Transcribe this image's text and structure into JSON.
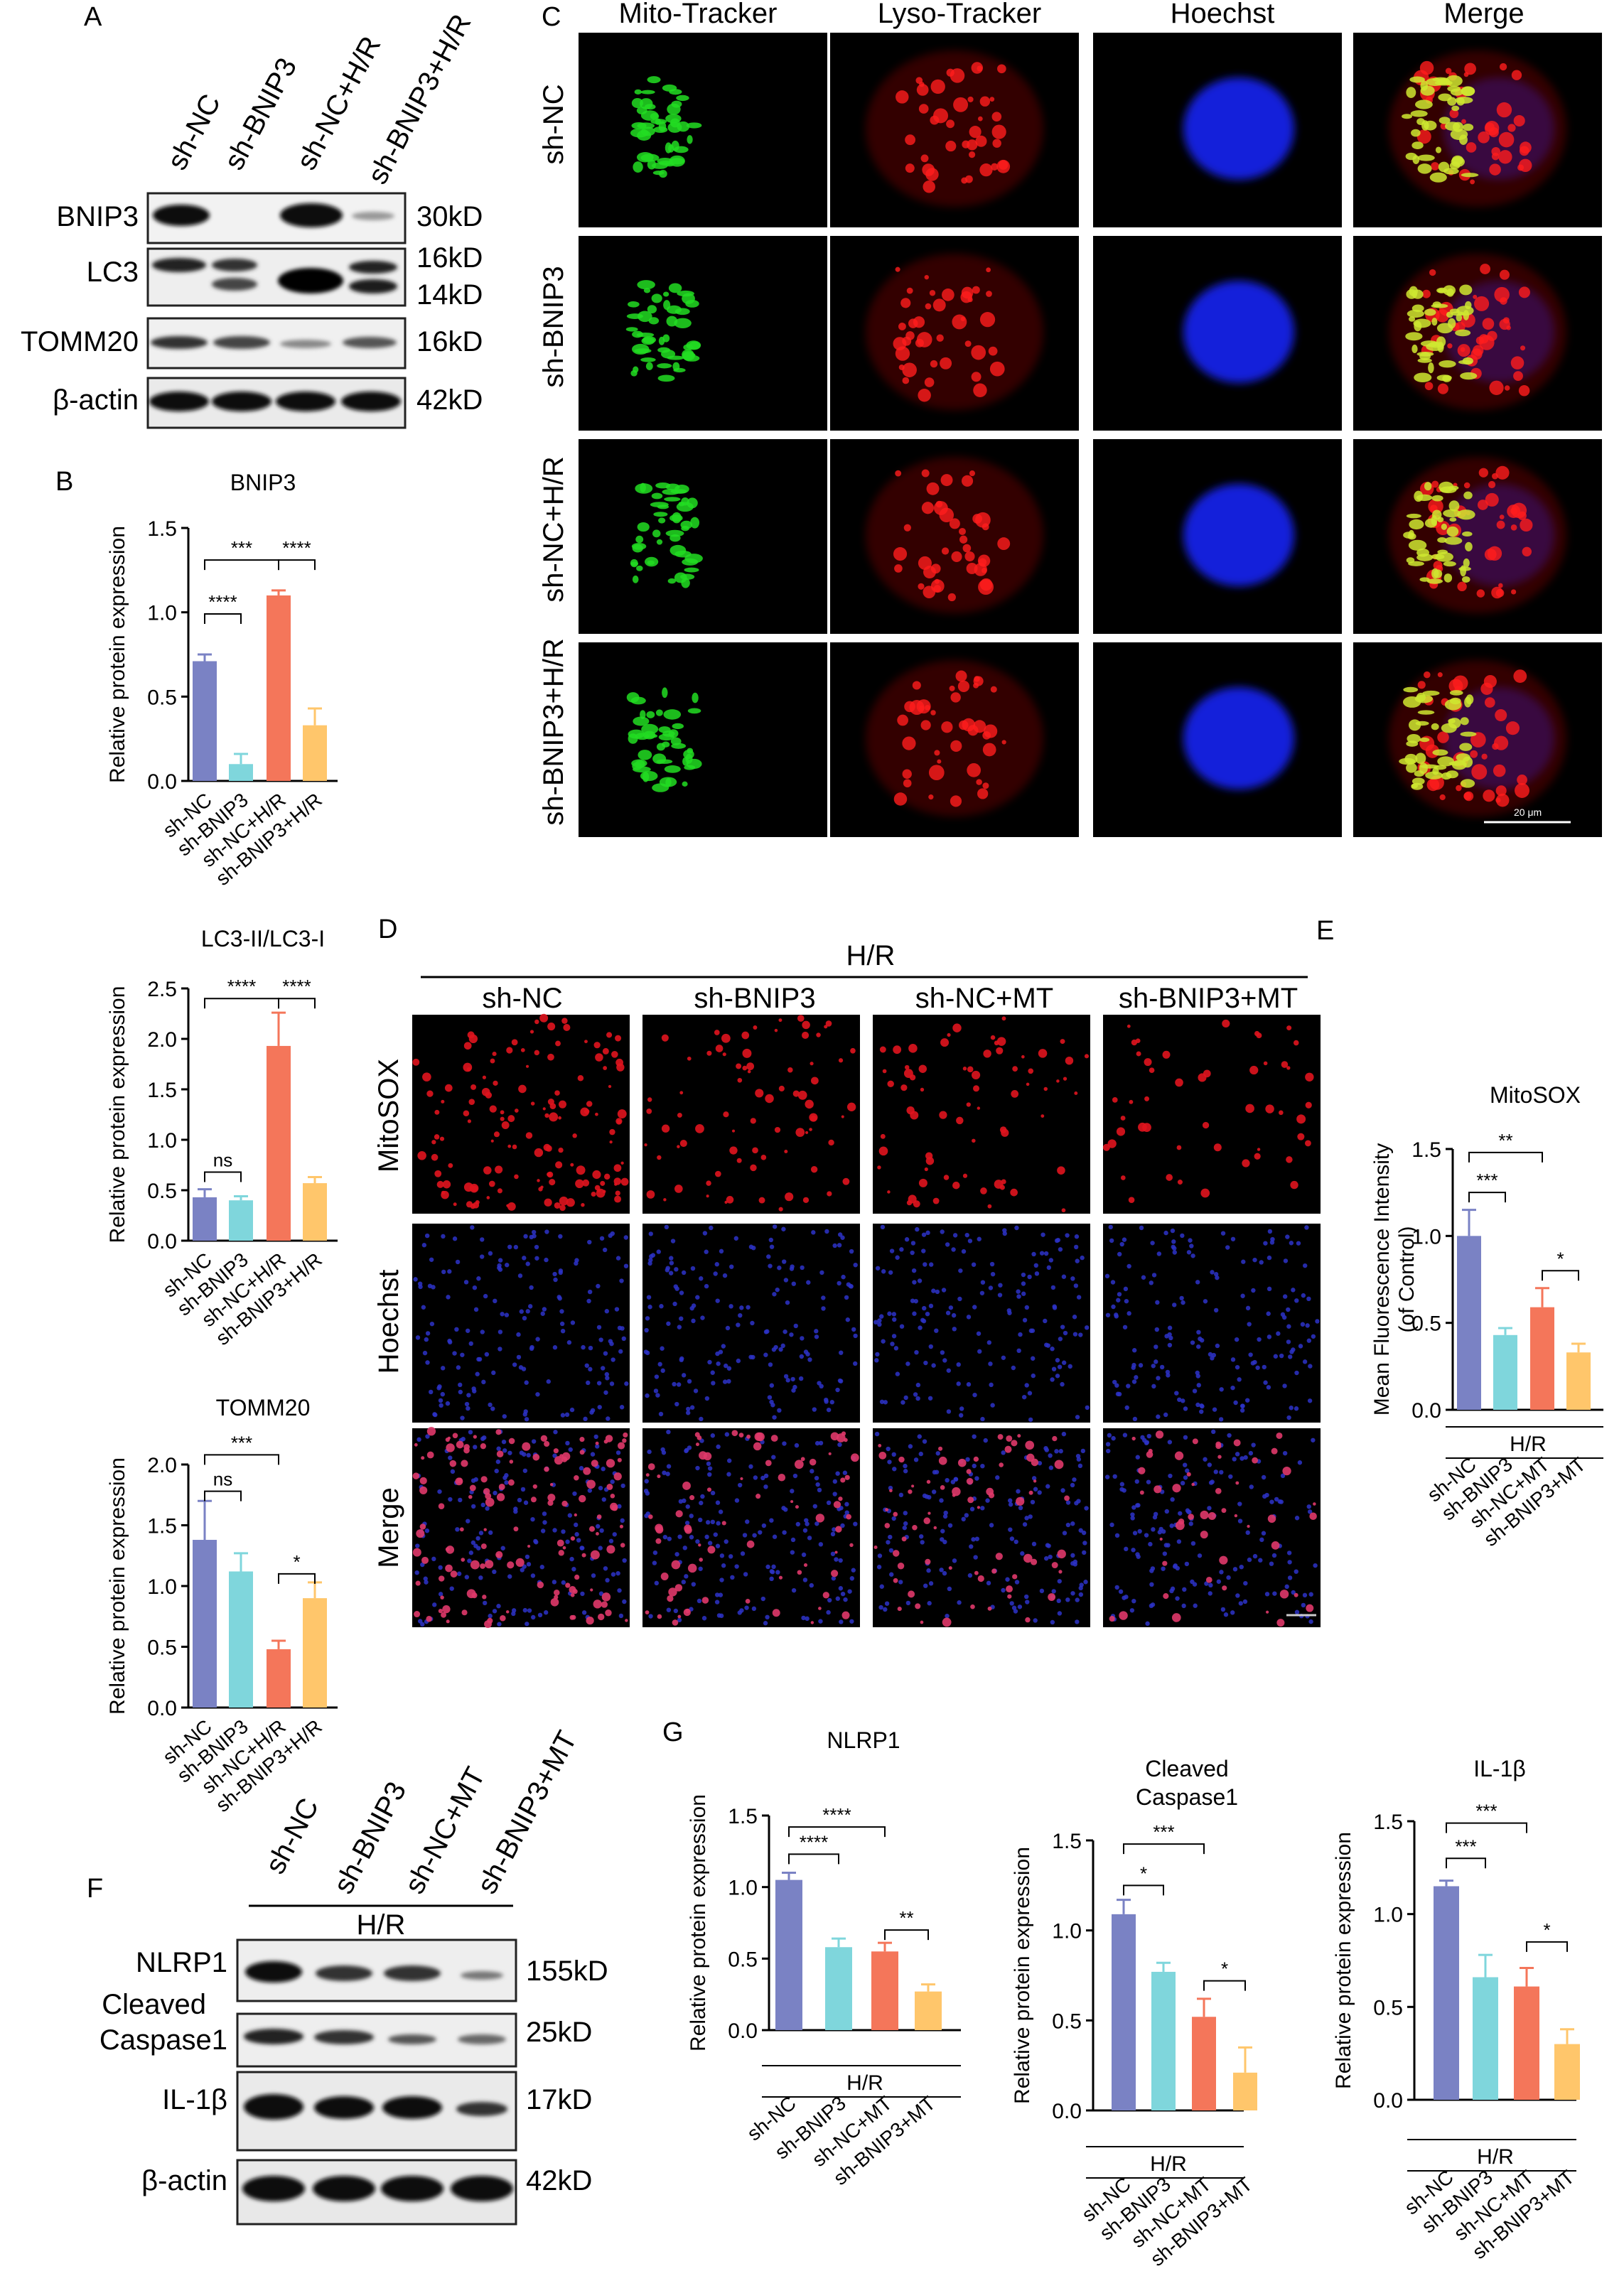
{
  "panels": {
    "A": {
      "letter": "A",
      "lanes": [
        "sh-NC",
        "sh-BNIP3",
        "sh-NC+H/R",
        "sh-BNIP3+H/R"
      ],
      "bands": [
        {
          "name": "BNIP3",
          "size": "30kD"
        },
        {
          "name": "LC3",
          "size": "16kD",
          "size2": "14kD"
        },
        {
          "name": "TOMM20",
          "size": "16kD"
        },
        {
          "name": "β-actin",
          "size": "42kD"
        }
      ]
    },
    "B": {
      "letter": "B"
    },
    "C": {
      "letter": "C",
      "columns": [
        "Mito-Tracker",
        "Lyso-Tracker",
        "Hoechst",
        "Merge"
      ],
      "rows": [
        "sh-NC",
        "sh-BNIP3",
        "sh-NC+H/R",
        "sh-BNIP3+H/R"
      ],
      "scale_bar": "20 μm"
    },
    "D": {
      "letter": "D",
      "group": "H/R",
      "columns": [
        "sh-NC",
        "sh-BNIP3",
        "sh-NC+MT",
        "sh-BNIP3+MT"
      ],
      "rows": [
        "MitoSOX",
        "Hoechst",
        "Merge"
      ]
    },
    "E": {
      "letter": "E"
    },
    "F": {
      "letter": "F",
      "lanes": [
        "sh-NC",
        "sh-BNIP3",
        "sh-NC+MT",
        "sh-BNIP3+MT"
      ],
      "group": "H/R",
      "bands": [
        {
          "name": "NLRP1",
          "size": "155kD"
        },
        {
          "name": "Cleaved",
          "name2": "Caspase1",
          "size": "25kD"
        },
        {
          "name": "IL-1β",
          "size": "17kD"
        },
        {
          "name": "β-actin",
          "size": "42kD"
        }
      ]
    },
    "G": {
      "letter": "G"
    }
  },
  "colors": {
    "sh-NC": "#7A82C4",
    "sh-BNIP3": "#7FD6DC",
    "sh-NC+H/R": "#F4765A",
    "sh-BNIP3+H/R": "#FFC66B"
  },
  "chart_data": [
    {
      "id": "B1",
      "type": "bar",
      "title": "BNIP3",
      "ylabel": "Relative protein expression",
      "ylim": [
        0,
        1.5
      ],
      "yticks": [
        "0.0",
        "0.5",
        "1.0",
        "1.5"
      ],
      "categories": [
        "sh-NC",
        "sh-BNIP3",
        "sh-NC+H/R",
        "sh-BNIP3+H/R"
      ],
      "values": [
        0.71,
        0.1,
        1.1,
        0.33
      ],
      "errors": [
        0.04,
        0.06,
        0.03,
        0.1
      ],
      "brackets": [
        {
          "from": 0,
          "to": 1,
          "level": 0.99,
          "label": "****"
        },
        {
          "from": 0,
          "to": 2,
          "level": 1.31,
          "label": "***"
        },
        {
          "from": 2,
          "to": 3,
          "level": 1.31,
          "label": "****"
        }
      ]
    },
    {
      "id": "B2",
      "type": "bar",
      "title": "LC3-II/LC3-I",
      "ylabel": "Relative protein expression",
      "ylim": [
        0,
        2.5
      ],
      "yticks": [
        "0.0",
        "0.5",
        "1.0",
        "1.5",
        "2.0",
        "2.5"
      ],
      "categories": [
        "sh-NC",
        "sh-BNIP3",
        "sh-NC+H/R",
        "sh-BNIP3+H/R"
      ],
      "values": [
        0.43,
        0.4,
        1.93,
        0.57
      ],
      "errors": [
        0.08,
        0.04,
        0.33,
        0.06
      ],
      "brackets": [
        {
          "from": 0,
          "to": 1,
          "level": 0.68,
          "label": "ns"
        },
        {
          "from": 0,
          "to": 2,
          "level": 2.4,
          "label": "****"
        },
        {
          "from": 2,
          "to": 3,
          "level": 2.4,
          "label": "****"
        }
      ]
    },
    {
      "id": "B3",
      "type": "bar",
      "title": "TOMM20",
      "ylabel": "Relative protein expression",
      "ylim": [
        0,
        2.0
      ],
      "yticks": [
        "0.0",
        "0.5",
        "1.0",
        "1.5",
        "2.0"
      ],
      "categories": [
        "sh-NC",
        "sh-BNIP3",
        "sh-NC+H/R",
        "sh-BNIP3+H/R"
      ],
      "values": [
        1.38,
        1.12,
        0.48,
        0.9
      ],
      "errors": [
        0.32,
        0.15,
        0.07,
        0.13
      ],
      "brackets": [
        {
          "from": 0,
          "to": 1,
          "level": 1.78,
          "label": "ns"
        },
        {
          "from": 0,
          "to": 2,
          "level": 2.08,
          "label": "***"
        },
        {
          "from": 2,
          "to": 3,
          "level": 1.1,
          "label": "*"
        }
      ]
    },
    {
      "id": "E",
      "type": "bar",
      "title": "MitoSOX",
      "ylabel": "Mean Fluorescence Intensity",
      "ylabel2": "(of Control)",
      "ylim": [
        0,
        1.5
      ],
      "yticks": [
        "0.0",
        "0.5",
        "1.0",
        "1.5"
      ],
      "group_label": "H/R",
      "categories": [
        "sh-NC",
        "sh-BNIP3",
        "sh-NC+MT",
        "sh-BNIP3+MT"
      ],
      "values": [
        1.0,
        0.43,
        0.59,
        0.33
      ],
      "errors": [
        0.15,
        0.04,
        0.11,
        0.05
      ],
      "brackets": [
        {
          "from": 0,
          "to": 1,
          "level": 1.25,
          "label": "***"
        },
        {
          "from": 0,
          "to": 2,
          "level": 1.48,
          "label": "**"
        },
        {
          "from": 2,
          "to": 3,
          "level": 0.8,
          "label": "*"
        }
      ]
    },
    {
      "id": "G1",
      "type": "bar",
      "title": "NLRP1",
      "ylabel": "Relative protein expression",
      "ylim": [
        0,
        1.5
      ],
      "yticks": [
        "0.0",
        "0.5",
        "1.0",
        "1.5"
      ],
      "group_label": "H/R",
      "categories": [
        "sh-NC",
        "sh-BNIP3",
        "sh-NC+MT",
        "sh-BNIP3+MT"
      ],
      "values": [
        1.05,
        0.58,
        0.55,
        0.27
      ],
      "errors": [
        0.05,
        0.06,
        0.06,
        0.05
      ],
      "brackets": [
        {
          "from": 0,
          "to": 1,
          "level": 1.23,
          "label": "****"
        },
        {
          "from": 0,
          "to": 2,
          "level": 1.42,
          "label": "****"
        },
        {
          "from": 2,
          "to": 3,
          "level": 0.7,
          "label": "**"
        }
      ]
    },
    {
      "id": "G2",
      "type": "bar",
      "title": "Cleaved",
      "title2": "Caspase1",
      "ylabel": "Relative protein expression",
      "ylim": [
        0,
        1.5
      ],
      "yticks": [
        "0.0",
        "0.5",
        "1.0",
        "1.5"
      ],
      "group_label": "H/R",
      "categories": [
        "sh-NC",
        "sh-BNIP3",
        "sh-NC+MT",
        "sh-BNIP3+MT"
      ],
      "values": [
        1.09,
        0.77,
        0.52,
        0.21
      ],
      "errors": [
        0.08,
        0.05,
        0.1,
        0.14
      ],
      "brackets": [
        {
          "from": 0,
          "to": 1,
          "level": 1.25,
          "label": "*"
        },
        {
          "from": 0,
          "to": 2,
          "level": 1.48,
          "label": "***"
        },
        {
          "from": 2,
          "to": 3,
          "level": 0.72,
          "label": "*"
        }
      ]
    },
    {
      "id": "G3",
      "type": "bar",
      "title": "IL-1β",
      "ylabel": "Relative protein expression",
      "ylim": [
        0,
        1.5
      ],
      "yticks": [
        "0.0",
        "0.5",
        "1.0",
        "1.5"
      ],
      "group_label": "H/R",
      "categories": [
        "sh-NC",
        "sh-BNIP3",
        "sh-NC+MT",
        "sh-BNIP3+MT"
      ],
      "values": [
        1.15,
        0.66,
        0.61,
        0.3
      ],
      "errors": [
        0.03,
        0.12,
        0.1,
        0.08
      ],
      "brackets": [
        {
          "from": 0,
          "to": 1,
          "level": 1.3,
          "label": "***"
        },
        {
          "from": 0,
          "to": 2,
          "level": 1.49,
          "label": "***"
        },
        {
          "from": 2,
          "to": 3,
          "level": 0.85,
          "label": "*"
        }
      ]
    }
  ]
}
